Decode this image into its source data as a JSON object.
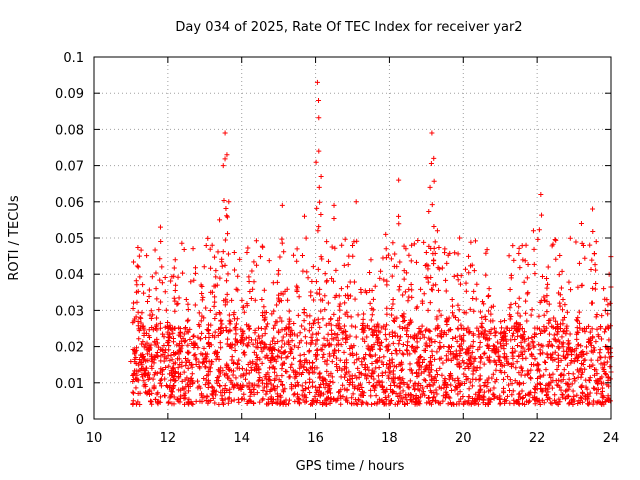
{
  "chart_data": {
    "type": "scatter",
    "title": "Day 034 of 2025, Rate Of TEC Index for receiver yar2",
    "xlabel": "GPS time / hours",
    "ylabel": "ROTI / TECUs",
    "xlim": [
      10,
      24
    ],
    "ylim": [
      0,
      0.1
    ],
    "x_ticks": [
      "10",
      "12",
      "14",
      "16",
      "18",
      "20",
      "22",
      "24"
    ],
    "y_ticks": [
      "0",
      "0.01",
      "0.02",
      "0.03",
      "0.04",
      "0.05",
      "0.06",
      "0.07",
      "0.08",
      "0.09",
      "0.1"
    ],
    "grid": true,
    "marker": "+",
    "color": "#ff0000",
    "series": [
      {
        "x_range": [
          11.05,
          24.0
        ],
        "typical_y_range": [
          0.004,
          0.025
        ],
        "values": [
          [
            11.05,
            0.012
          ],
          [
            11.1,
            0.018
          ],
          [
            11.15,
            0.035
          ],
          [
            11.2,
            0.042
          ],
          [
            11.25,
            0.028
          ],
          [
            11.3,
            0.015
          ],
          [
            11.4,
            0.009
          ],
          [
            11.5,
            0.019
          ],
          [
            11.6,
            0.011
          ],
          [
            11.7,
            0.022
          ],
          [
            11.8,
            0.053
          ],
          [
            11.9,
            0.016
          ],
          [
            12.0,
            0.024
          ],
          [
            12.1,
            0.008
          ],
          [
            12.2,
            0.044
          ],
          [
            12.3,
            0.018
          ],
          [
            12.5,
            0.033
          ],
          [
            12.7,
            0.021
          ],
          [
            12.9,
            0.037
          ],
          [
            13.1,
            0.026
          ],
          [
            13.2,
            0.048
          ],
          [
            13.3,
            0.041
          ],
          [
            13.4,
            0.055
          ],
          [
            13.5,
            0.07
          ],
          [
            13.55,
            0.079
          ],
          [
            13.6,
            0.073
          ],
          [
            13.65,
            0.06
          ],
          [
            13.8,
            0.046
          ],
          [
            14.0,
            0.023
          ],
          [
            14.2,
            0.038
          ],
          [
            14.4,
            0.014
          ],
          [
            14.6,
            0.031
          ],
          [
            14.8,
            0.019
          ],
          [
            15.0,
            0.041
          ],
          [
            15.1,
            0.059
          ],
          [
            15.3,
            0.027
          ],
          [
            15.5,
            0.047
          ],
          [
            15.7,
            0.056
          ],
          [
            15.9,
            0.038
          ],
          [
            16.05,
            0.093
          ],
          [
            16.08,
            0.088
          ],
          [
            16.1,
            0.064
          ],
          [
            16.15,
            0.067
          ],
          [
            16.3,
            0.049
          ],
          [
            16.5,
            0.059
          ],
          [
            16.7,
            0.036
          ],
          [
            16.9,
            0.045
          ],
          [
            17.1,
            0.06
          ],
          [
            17.3,
            0.029
          ],
          [
            17.5,
            0.044
          ],
          [
            17.7,
            0.022
          ],
          [
            17.9,
            0.051
          ],
          [
            18.1,
            0.033
          ],
          [
            18.25,
            0.066
          ],
          [
            18.4,
            0.041
          ],
          [
            18.6,
            0.048
          ],
          [
            18.8,
            0.025
          ],
          [
            19.0,
            0.046
          ],
          [
            19.1,
            0.064
          ],
          [
            19.15,
            0.079
          ],
          [
            19.2,
            0.072
          ],
          [
            19.3,
            0.052
          ],
          [
            19.5,
            0.047
          ],
          [
            19.7,
            0.033
          ],
          [
            19.9,
            0.05
          ],
          [
            20.1,
            0.018
          ],
          [
            20.3,
            0.041
          ],
          [
            20.5,
            0.028
          ],
          [
            20.7,
            0.036
          ],
          [
            20.9,
            0.015
          ],
          [
            21.1,
            0.024
          ],
          [
            21.3,
            0.039
          ],
          [
            21.5,
            0.031
          ],
          [
            21.7,
            0.048
          ],
          [
            21.9,
            0.052
          ],
          [
            22.1,
            0.062
          ],
          [
            22.3,
            0.042
          ],
          [
            22.5,
            0.027
          ],
          [
            22.7,
            0.033
          ],
          [
            22.9,
            0.019
          ],
          [
            23.1,
            0.028
          ],
          [
            23.2,
            0.054
          ],
          [
            23.4,
            0.022
          ],
          [
            23.5,
            0.058
          ],
          [
            23.6,
            0.049
          ],
          [
            23.8,
            0.036
          ],
          [
            23.95,
            0.04
          ],
          [
            24.0,
            0.013
          ]
        ]
      }
    ]
  }
}
